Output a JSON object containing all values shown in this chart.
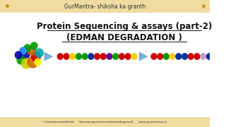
{
  "title_top": "GurMantra- shiksha ka granth",
  "title_main1": "Protein Sequencing & assays (part-2)",
  "title_main2": "(EDMAN DEGRADATION )",
  "bg_color": "#ffffff",
  "header_bg": "#f0dca0",
  "footer_bg": "#f0dca0",
  "header_text_color": "#333333",
  "main_text_color": "#111111",
  "dots_group1": [
    "#cc0000",
    "#cc0000",
    "#ffcc00",
    "#009900",
    "#009900",
    "#003399",
    "#cc0000",
    "#cc0000",
    "#660099",
    "#009900",
    "#cc0000",
    "#cc0000",
    "#ffcc00"
  ],
  "dots_group2": [
    "#cc0000",
    "#cc0000",
    "#009900",
    "#ffcc00",
    "#003399",
    "#003399",
    "#cc0000",
    "#cc0000",
    "#cc99cc",
    "#003399",
    "#cc0000",
    "#cc0000",
    "#ffcc00"
  ],
  "arrow_color": "#7bafd4",
  "footer_text": "f /tanejanehaofficial     Youtube/gurmantrashikshakagranth     www.gurmantra.in",
  "accent_color": "#cc8800",
  "blob_data": [
    [
      38,
      105,
      8,
      "#0000aa"
    ],
    [
      32,
      95,
      6,
      "#009900"
    ],
    [
      40,
      90,
      7,
      "#cccc00"
    ],
    [
      50,
      92,
      8,
      "#cc6600"
    ],
    [
      55,
      100,
      7,
      "#cc0000"
    ],
    [
      48,
      108,
      6,
      "#cc6600"
    ],
    [
      42,
      112,
      5,
      "#009900"
    ],
    [
      35,
      108,
      5,
      "#3399ff"
    ],
    [
      28,
      102,
      5,
      "#0000aa"
    ],
    [
      58,
      92,
      5,
      "#ffff00"
    ],
    [
      60,
      105,
      6,
      "#00aaaa"
    ],
    [
      52,
      115,
      5,
      "#009900"
    ]
  ]
}
